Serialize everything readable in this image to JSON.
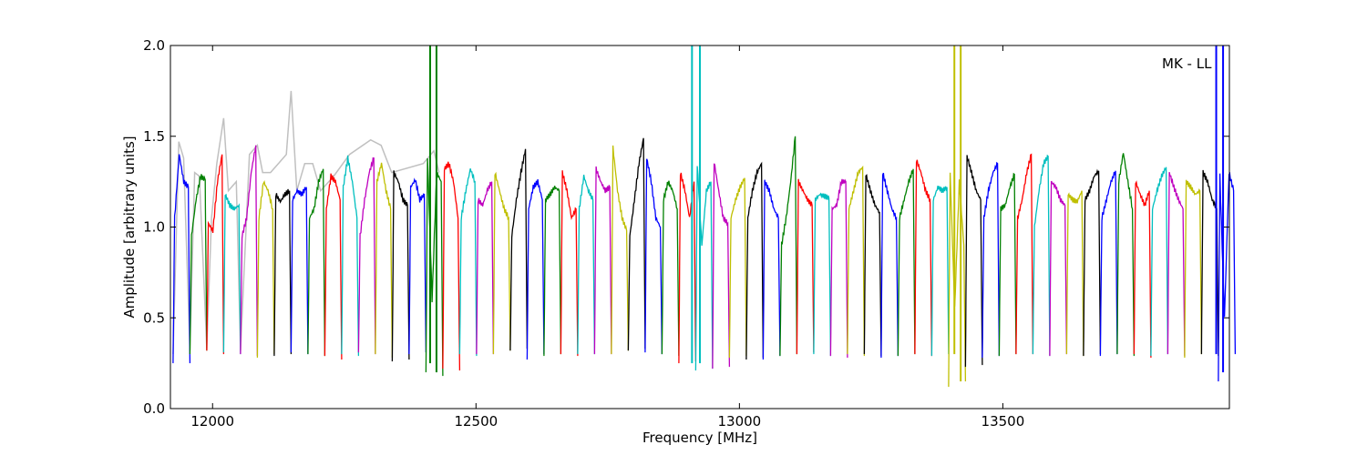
{
  "chart_data": {
    "type": "line",
    "title": "",
    "xlabel": "Frequency [MHz]",
    "ylabel": "Amplitude [arbitrary units]",
    "annotation": "MK - LL",
    "xlim": [
      11920,
      13930
    ],
    "ylim": [
      0.0,
      2.0
    ],
    "x_ticks": [
      12000,
      12500,
      13000,
      13500
    ],
    "x_tick_labels": [
      "12000",
      "12500",
      "13000",
      "13500"
    ],
    "y_ticks": [
      0.0,
      0.5,
      1.0,
      1.5,
      2.0
    ],
    "y_tick_labels": [
      "0.0",
      "0.5",
      "1.0",
      "1.5",
      "2.0"
    ],
    "grid": false,
    "legend": "none",
    "channel_width_mhz": 32,
    "color_cycle": [
      "#0000ff",
      "#008000",
      "#ff0000",
      "#00bfbf",
      "#bf00bf",
      "#bfbf00",
      "#000000"
    ],
    "background_series_color": "#c0c0c0",
    "channels": [
      {
        "start": 11925,
        "color": "#0000ff",
        "shape": [
          0.25,
          1.05,
          1.4,
          1.25,
          1.22,
          0.25
        ]
      },
      {
        "start": 11957,
        "color": "#008000",
        "shape": [
          0.3,
          0.95,
          1.15,
          1.28,
          1.26,
          0.32
        ]
      },
      {
        "start": 11989,
        "color": "#ff0000",
        "shape": [
          0.32,
          1.02,
          0.98,
          1.25,
          1.4,
          0.3
        ]
      },
      {
        "start": 12021,
        "color": "#00bfbf",
        "shape": [
          0.31,
          1.18,
          1.12,
          1.1,
          1.12,
          0.3
        ]
      },
      {
        "start": 12053,
        "color": "#bf00bf",
        "shape": [
          0.3,
          0.95,
          1.05,
          1.3,
          1.45,
          0.29
        ]
      },
      {
        "start": 12085,
        "color": "#bfbf00",
        "shape": [
          0.28,
          1.05,
          1.25,
          1.2,
          1.1,
          0.3
        ]
      },
      {
        "start": 12117,
        "color": "#000000",
        "shape": [
          0.29,
          1.18,
          1.14,
          1.18,
          1.2,
          0.3
        ]
      },
      {
        "start": 12149,
        "color": "#0000ff",
        "shape": [
          0.31,
          1.15,
          1.2,
          1.18,
          1.22,
          0.3
        ]
      },
      {
        "start": 12181,
        "color": "#008000",
        "shape": [
          0.3,
          1.05,
          1.1,
          1.25,
          1.32,
          0.29
        ]
      },
      {
        "start": 12213,
        "color": "#ff0000",
        "shape": [
          0.29,
          1.1,
          1.28,
          1.25,
          1.15,
          0.27
        ]
      },
      {
        "start": 12245,
        "color": "#00bfbf",
        "shape": [
          0.3,
          1.22,
          1.38,
          1.25,
          1.05,
          0.29
        ]
      },
      {
        "start": 12277,
        "color": "#bf00bf",
        "shape": [
          0.31,
          0.95,
          1.15,
          1.3,
          1.38,
          0.3
        ]
      },
      {
        "start": 12309,
        "color": "#bfbf00",
        "shape": [
          0.3,
          1.25,
          1.35,
          1.2,
          1.1,
          0.28
        ]
      },
      {
        "start": 12341,
        "color": "#000000",
        "shape": [
          0.26,
          1.3,
          1.25,
          1.15,
          1.12,
          0.27
        ]
      },
      {
        "start": 12373,
        "color": "#0000ff",
        "shape": [
          0.3,
          1.22,
          1.26,
          1.15,
          1.18,
          0.31
        ]
      },
      {
        "start": 12405,
        "color": "#008000",
        "shape": [
          0.2,
          1.38,
          0.6,
          1.3,
          1.25,
          0.18
        ]
      },
      {
        "start": 12437,
        "color": "#ff0000",
        "shape": [
          0.22,
          1.32,
          1.35,
          1.25,
          1.05,
          0.21
        ]
      },
      {
        "start": 12469,
        "color": "#00bfbf",
        "shape": [
          0.3,
          1.05,
          1.2,
          1.32,
          1.25,
          0.29
        ]
      },
      {
        "start": 12501,
        "color": "#bf00bf",
        "shape": [
          0.3,
          1.15,
          1.12,
          1.2,
          1.25,
          0.3
        ]
      },
      {
        "start": 12533,
        "color": "#bfbf00",
        "shape": [
          0.3,
          1.3,
          1.2,
          1.1,
          1.05,
          0.32
        ]
      },
      {
        "start": 12565,
        "color": "#000000",
        "shape": [
          0.32,
          0.95,
          1.15,
          1.3,
          1.43,
          0.33
        ]
      },
      {
        "start": 12597,
        "color": "#0000ff",
        "shape": [
          0.27,
          1.1,
          1.22,
          1.25,
          1.15,
          0.3
        ]
      },
      {
        "start": 12629,
        "color": "#008000",
        "shape": [
          0.29,
          1.15,
          1.18,
          1.22,
          1.2,
          0.3
        ]
      },
      {
        "start": 12661,
        "color": "#ff0000",
        "shape": [
          0.3,
          1.3,
          1.2,
          1.05,
          1.1,
          0.29
        ]
      },
      {
        "start": 12693,
        "color": "#00bfbf",
        "shape": [
          0.3,
          1.1,
          1.28,
          1.2,
          1.15,
          0.3
        ]
      },
      {
        "start": 12725,
        "color": "#bf00bf",
        "shape": [
          0.3,
          1.32,
          1.25,
          1.2,
          1.22,
          0.3
        ]
      },
      {
        "start": 12757,
        "color": "#bfbf00",
        "shape": [
          0.3,
          1.44,
          1.2,
          1.05,
          0.98,
          0.32
        ]
      },
      {
        "start": 12789,
        "color": "#000000",
        "shape": [
          0.32,
          0.95,
          1.15,
          1.35,
          1.49,
          0.33
        ]
      },
      {
        "start": 12821,
        "color": "#0000ff",
        "shape": [
          0.31,
          1.38,
          1.25,
          1.05,
          1.0,
          0.3
        ]
      },
      {
        "start": 12853,
        "color": "#008000",
        "shape": [
          0.3,
          1.15,
          1.25,
          1.2,
          1.1,
          0.29
        ]
      },
      {
        "start": 12885,
        "color": "#ff0000",
        "shape": [
          0.25,
          1.3,
          1.2,
          1.05,
          1.25,
          0.26
        ]
      },
      {
        "start": 12917,
        "color": "#00bfbf",
        "shape": [
          0.21,
          1.35,
          0.9,
          1.2,
          1.25,
          0.22
        ]
      },
      {
        "start": 12949,
        "color": "#bf00bf",
        "shape": [
          0.22,
          1.36,
          1.2,
          1.05,
          1.02,
          0.23
        ]
      },
      {
        "start": 12981,
        "color": "#bfbf00",
        "shape": [
          0.28,
          1.05,
          1.15,
          1.22,
          1.27,
          0.29
        ]
      },
      {
        "start": 13013,
        "color": "#000000",
        "shape": [
          0.27,
          1.05,
          1.2,
          1.3,
          1.35,
          0.28
        ]
      },
      {
        "start": 13045,
        "color": "#0000ff",
        "shape": [
          0.27,
          1.25,
          1.2,
          1.1,
          1.05,
          0.29
        ]
      },
      {
        "start": 13077,
        "color": "#008000",
        "shape": [
          0.29,
          0.9,
          1.05,
          1.25,
          1.5,
          0.3
        ]
      },
      {
        "start": 13109,
        "color": "#ff0000",
        "shape": [
          0.3,
          1.25,
          1.2,
          1.15,
          1.12,
          0.31
        ]
      },
      {
        "start": 13141,
        "color": "#00bfbf",
        "shape": [
          0.3,
          1.15,
          1.18,
          1.17,
          1.16,
          0.29
        ]
      },
      {
        "start": 13173,
        "color": "#bf00bf",
        "shape": [
          0.29,
          1.1,
          1.12,
          1.25,
          1.25,
          0.28
        ]
      },
      {
        "start": 13205,
        "color": "#bfbf00",
        "shape": [
          0.3,
          1.1,
          1.2,
          1.3,
          1.33,
          0.29
        ]
      },
      {
        "start": 13237,
        "color": "#000000",
        "shape": [
          0.3,
          1.29,
          1.2,
          1.12,
          1.08,
          0.29
        ]
      },
      {
        "start": 13269,
        "color": "#0000ff",
        "shape": [
          0.28,
          1.3,
          1.2,
          1.1,
          1.05,
          0.29
        ]
      },
      {
        "start": 13301,
        "color": "#008000",
        "shape": [
          0.29,
          1.05,
          1.15,
          1.25,
          1.32,
          0.3
        ]
      },
      {
        "start": 13333,
        "color": "#ff0000",
        "shape": [
          0.3,
          1.37,
          1.3,
          1.2,
          1.15,
          0.29
        ]
      },
      {
        "start": 13365,
        "color": "#00bfbf",
        "shape": [
          0.29,
          1.15,
          1.22,
          1.2,
          1.22,
          0.3
        ]
      },
      {
        "start": 13397,
        "color": "#bfbf00",
        "shape": [
          0.12,
          1.3,
          0.55,
          1.25,
          0.9,
          0.15
        ]
      },
      {
        "start": 13429,
        "color": "#000000",
        "shape": [
          0.23,
          1.39,
          1.3,
          1.2,
          1.15,
          0.24
        ]
      },
      {
        "start": 13461,
        "color": "#0000ff",
        "shape": [
          0.28,
          1.05,
          1.2,
          1.3,
          1.35,
          0.29
        ]
      },
      {
        "start": 13493,
        "color": "#008000",
        "shape": [
          0.29,
          1.1,
          1.12,
          1.22,
          1.29,
          0.3
        ]
      },
      {
        "start": 13525,
        "color": "#ff0000",
        "shape": [
          0.3,
          1.05,
          1.15,
          1.3,
          1.4,
          0.3
        ]
      },
      {
        "start": 13557,
        "color": "#00bfbf",
        "shape": [
          0.3,
          1.0,
          1.2,
          1.35,
          1.39,
          0.29
        ]
      },
      {
        "start": 13589,
        "color": "#bf00bf",
        "shape": [
          0.29,
          1.25,
          1.22,
          1.15,
          1.12,
          0.3
        ]
      },
      {
        "start": 13621,
        "color": "#bfbf00",
        "shape": [
          0.3,
          1.18,
          1.15,
          1.14,
          1.2,
          0.29
        ]
      },
      {
        "start": 13653,
        "color": "#000000",
        "shape": [
          0.29,
          1.15,
          1.2,
          1.28,
          1.31,
          0.3
        ]
      },
      {
        "start": 13685,
        "color": "#0000ff",
        "shape": [
          0.29,
          1.05,
          1.15,
          1.25,
          1.31,
          0.3
        ]
      },
      {
        "start": 13717,
        "color": "#008000",
        "shape": [
          0.3,
          1.25,
          1.41,
          1.25,
          1.1,
          0.29
        ]
      },
      {
        "start": 13749,
        "color": "#ff0000",
        "shape": [
          0.3,
          1.25,
          1.18,
          1.12,
          1.2,
          0.28
        ]
      },
      {
        "start": 13781,
        "color": "#00bfbf",
        "shape": [
          0.29,
          1.1,
          1.2,
          1.28,
          1.33,
          0.3
        ]
      },
      {
        "start": 13813,
        "color": "#bf00bf",
        "shape": [
          0.3,
          1.3,
          1.22,
          1.15,
          1.1,
          0.29
        ]
      },
      {
        "start": 13845,
        "color": "#bfbf00",
        "shape": [
          0.28,
          1.25,
          1.22,
          1.18,
          1.2,
          0.3
        ]
      },
      {
        "start": 13877,
        "color": "#000000",
        "shape": [
          0.3,
          1.3,
          1.25,
          1.15,
          1.1,
          0.29
        ]
      },
      {
        "start": 13909,
        "color": "#0000ff",
        "shape": [
          0.15,
          1.28,
          0.5,
          1.3,
          1.2,
          0.3
        ]
      }
    ],
    "spikes": [
      {
        "x": 12413,
        "color": "#008000",
        "y": [
          0.25,
          2.0
        ]
      },
      {
        "x": 12425,
        "color": "#008000",
        "y": [
          0.2,
          2.0
        ]
      },
      {
        "x": 12910,
        "color": "#00bfbf",
        "y": [
          0.25,
          2.0
        ]
      },
      {
        "x": 12925,
        "color": "#00bfbf",
        "y": [
          0.25,
          2.0
        ]
      },
      {
        "x": 13408,
        "color": "#bfbf00",
        "y": [
          0.3,
          2.0
        ]
      },
      {
        "x": 13420,
        "color": "#bfbf00",
        "y": [
          0.15,
          2.0
        ]
      },
      {
        "x": 13905,
        "color": "#0000ff",
        "y": [
          0.3,
          2.0
        ]
      },
      {
        "x": 13918,
        "color": "#0000ff",
        "y": [
          0.2,
          2.0
        ]
      }
    ],
    "background_series": [
      [
        11925,
        0.3
      ],
      [
        11936,
        1.47
      ],
      [
        11945,
        1.38
      ],
      [
        11957,
        0.32
      ],
      [
        11966,
        1.3
      ],
      [
        11975,
        1.28
      ],
      [
        11989,
        0.33
      ],
      [
        11998,
        1.05
      ],
      [
        12008,
        1.35
      ],
      [
        12021,
        1.6
      ],
      [
        12030,
        1.2
      ],
      [
        12045,
        1.25
      ],
      [
        12053,
        0.32
      ],
      [
        12070,
        1.4
      ],
      [
        12085,
        1.45
      ],
      [
        12095,
        1.3
      ],
      [
        12110,
        1.3
      ],
      [
        12125,
        1.35
      ],
      [
        12140,
        1.4
      ],
      [
        12149,
        1.75
      ],
      [
        12160,
        1.2
      ],
      [
        12175,
        1.35
      ],
      [
        12190,
        1.35
      ],
      [
        12205,
        1.2
      ],
      [
        12230,
        1.28
      ],
      [
        12260,
        1.4
      ],
      [
        12300,
        1.48
      ],
      [
        12320,
        1.45
      ],
      [
        12340,
        1.3
      ],
      [
        12400,
        1.35
      ],
      [
        12420,
        1.42
      ],
      [
        12430,
        1.3
      ]
    ]
  }
}
